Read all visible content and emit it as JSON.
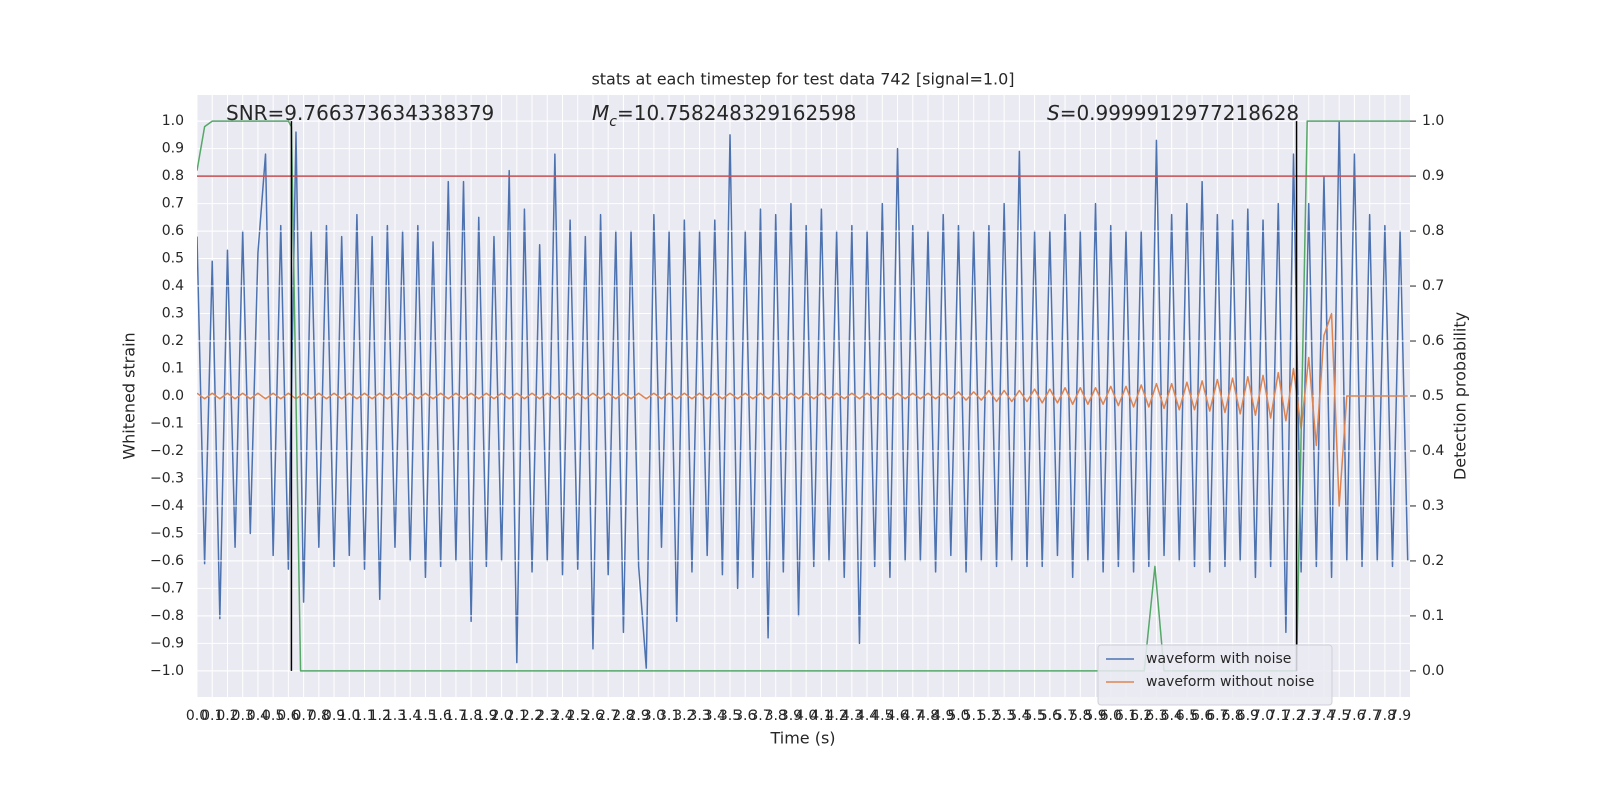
{
  "chart_data": {
    "type": "line",
    "title": "stats at each timestep for test data 742 [signal=1.0]",
    "xlabel": "Time (s)",
    "ylabel": "Whitened strain",
    "y2label": "Detection probability",
    "annotations": [
      {
        "text": "SNR=9.766373634338379"
      },
      {
        "symbol": "M",
        "subscript": "c",
        "text": "=10.758248329162598"
      },
      {
        "symbol": "S",
        "text": "=0.9999912977218628"
      }
    ],
    "xlim": [
      0,
      7.965
    ],
    "ylim": [
      -1.095,
      1.095
    ],
    "y2lim": [
      -0.0475,
      1.0475
    ],
    "grid": true,
    "background": "#eaeaf2",
    "legend": "lower right",
    "xticks": [
      {
        "value": 0,
        "label": "0.0"
      },
      0.1,
      0.2,
      0.3,
      0.4,
      0.5,
      0.6,
      0.7,
      0.8,
      0.9,
      {
        "value": 1,
        "label": "1.0"
      },
      1.1,
      1.2,
      1.3,
      1.4,
      1.5,
      1.6,
      1.7,
      1.8,
      1.9,
      {
        "value": 2,
        "label": "2.0"
      },
      2.1,
      2.2,
      2.3,
      2.4,
      2.5,
      2.6,
      2.7,
      2.8,
      2.9,
      {
        "value": 3,
        "label": "3.0"
      },
      3.1,
      3.2,
      3.3,
      3.4,
      3.5,
      3.6,
      3.7,
      3.8,
      3.9,
      {
        "value": 4,
        "label": "4.0"
      },
      4.1,
      4.2,
      4.3,
      4.4,
      4.5,
      4.6,
      4.7,
      4.8,
      4.9,
      {
        "value": 5,
        "label": "5.0"
      },
      5.1,
      5.2,
      5.3,
      5.4,
      5.5,
      5.6,
      5.7,
      5.8,
      5.9,
      {
        "value": 6,
        "label": "6.0"
      },
      6.1,
      6.2,
      6.3,
      6.4,
      6.5,
      6.6,
      6.7,
      6.8,
      6.9,
      {
        "value": 7,
        "label": "7.0"
      },
      7.1,
      7.2,
      7.3,
      7.4,
      7.5,
      7.6,
      7.7,
      7.8,
      7.9
    ],
    "yticks": [
      {
        "value": -1,
        "label": "−1.0"
      },
      {
        "value": -0.9,
        "label": "−0.9"
      },
      {
        "value": -0.8,
        "label": "−0.8"
      },
      {
        "value": -0.7,
        "label": "−0.7"
      },
      {
        "value": -0.6,
        "label": "−0.6"
      },
      {
        "value": -0.5,
        "label": "−0.5"
      },
      {
        "value": -0.4,
        "label": "−0.4"
      },
      {
        "value": -0.3,
        "label": "−0.3"
      },
      {
        "value": -0.2,
        "label": "−0.2"
      },
      {
        "value": -0.1,
        "label": "−0.1"
      },
      {
        "value": 0,
        "label": "0.0"
      },
      0.1,
      0.2,
      0.3,
      0.4,
      0.5,
      0.6,
      0.7,
      0.8,
      0.9,
      {
        "value": 1,
        "label": "1.0"
      }
    ],
    "y2ticks": [
      {
        "value": 0,
        "label": "0.0"
      },
      0.1,
      0.2,
      0.3,
      0.4,
      0.5,
      0.6,
      0.7,
      0.8,
      0.9,
      {
        "value": 1,
        "label": "1.0"
      }
    ],
    "x": [
      0,
      0.05,
      0.1,
      0.15,
      0.2,
      0.25,
      0.3,
      0.35,
      0.4,
      0.45,
      0.5,
      0.55,
      0.6,
      0.65,
      0.7,
      0.75,
      0.8,
      0.85,
      0.9,
      0.95,
      1,
      1.05,
      1.1,
      1.15,
      1.2,
      1.25,
      1.3,
      1.35,
      1.4,
      1.45,
      1.5,
      1.55,
      1.6,
      1.65,
      1.7,
      1.75,
      1.8,
      1.85,
      1.9,
      1.95,
      2,
      2.05,
      2.1,
      2.15,
      2.2,
      2.25,
      2.3,
      2.35,
      2.4,
      2.45,
      2.5,
      2.55,
      2.6,
      2.65,
      2.7,
      2.75,
      2.8,
      2.85,
      2.9,
      2.95,
      3,
      3.05,
      3.1,
      3.15,
      3.2,
      3.25,
      3.3,
      3.35,
      3.4,
      3.45,
      3.5,
      3.55,
      3.6,
      3.65,
      3.7,
      3.75,
      3.8,
      3.85,
      3.9,
      3.95,
      4,
      4.05,
      4.1,
      4.15,
      4.2,
      4.25,
      4.3,
      4.35,
      4.4,
      4.45,
      4.5,
      4.55,
      4.6,
      4.65,
      4.7,
      4.75,
      4.8,
      4.85,
      4.9,
      4.95,
      5,
      5.05,
      5.1,
      5.15,
      5.2,
      5.25,
      5.3,
      5.35,
      5.4,
      5.45,
      5.5,
      5.55,
      5.6,
      5.65,
      5.7,
      5.75,
      5.8,
      5.85,
      5.9,
      5.95,
      6,
      6.05,
      6.1,
      6.15,
      6.2,
      6.25,
      6.3,
      6.35,
      6.4,
      6.45,
      6.5,
      6.55,
      6.6,
      6.65,
      6.7,
      6.75,
      6.8,
      6.85,
      6.9,
      6.95,
      7,
      7.05,
      7.1,
      7.15,
      7.2,
      7.25,
      7.3,
      7.35,
      7.4,
      7.45,
      7.5,
      7.55,
      7.6,
      7.65,
      7.7,
      7.75,
      7.8,
      7.85,
      7.9,
      7.95
    ],
    "series": [
      {
        "name": "waveform with noise",
        "color": "#4c72b0",
        "values": [
          0.58,
          -0.61,
          0.49,
          -0.81,
          0.53,
          -0.55,
          0.6,
          -0.5,
          0.52,
          0.88,
          -0.58,
          0.62,
          -0.63,
          0.96,
          -0.75,
          0.6,
          -0.55,
          0.62,
          -0.62,
          0.58,
          -0.58,
          0.66,
          -0.63,
          0.58,
          -0.74,
          0.62,
          -0.55,
          0.6,
          -0.6,
          0.62,
          -0.66,
          0.56,
          -0.62,
          0.78,
          -0.6,
          0.78,
          -0.82,
          0.65,
          -0.62,
          0.58,
          -0.6,
          0.82,
          -0.97,
          0.68,
          -0.64,
          0.55,
          -0.6,
          0.88,
          -0.65,
          0.64,
          -0.63,
          0.58,
          -0.92,
          0.66,
          -0.65,
          0.6,
          -0.86,
          0.6,
          -0.62,
          -0.99,
          0.66,
          -0.55,
          0.6,
          -0.82,
          0.64,
          -0.64,
          0.6,
          -0.58,
          0.64,
          -0.65,
          0.95,
          -0.7,
          0.6,
          -0.66,
          0.68,
          -0.88,
          0.66,
          -0.64,
          0.7,
          -0.8,
          0.62,
          -0.62,
          0.68,
          -0.6,
          0.6,
          -0.66,
          0.62,
          -0.9,
          0.6,
          -0.62,
          0.7,
          -0.66,
          0.9,
          -0.6,
          0.62,
          -0.6,
          0.6,
          -0.64,
          0.66,
          -0.58,
          0.62,
          -0.64,
          0.6,
          -0.6,
          0.62,
          -0.62,
          0.7,
          -0.6,
          0.89,
          -0.62,
          0.6,
          -0.62,
          0.6,
          -0.58,
          0.66,
          -0.66,
          0.6,
          -0.6,
          0.7,
          -0.64,
          0.62,
          -0.62,
          0.6,
          -0.64,
          0.6,
          -0.62,
          0.93,
          -0.58,
          0.66,
          -0.6,
          0.7,
          -0.62,
          0.78,
          -0.64,
          0.66,
          -0.62,
          0.64,
          -0.6,
          0.68,
          -0.66,
          0.64,
          -0.62,
          0.7,
          -0.86,
          0.88,
          -0.64,
          0.7,
          -0.62,
          0.8,
          -0.66,
          1.0,
          -0.6,
          0.88,
          -0.62,
          0.66,
          -0.6,
          0.62,
          -0.62,
          0.6,
          -0.6
        ]
      },
      {
        "name": "waveform without noise",
        "color": "#dd8452",
        "values": [
          0.01,
          -0.01,
          0.01,
          -0.01,
          0.01,
          -0.01,
          0.01,
          -0.01,
          0.01,
          -0.01,
          0.01,
          -0.01,
          0.01,
          -0.01,
          0.01,
          -0.01,
          0.01,
          -0.01,
          0.01,
          -0.01,
          0.01,
          -0.01,
          0.01,
          -0.01,
          0.01,
          -0.01,
          0.01,
          -0.01,
          0.01,
          -0.01,
          0.01,
          -0.01,
          0.01,
          -0.01,
          0.01,
          -0.01,
          0.01,
          -0.01,
          0.01,
          -0.01,
          0.01,
          -0.01,
          0.01,
          -0.01,
          0.01,
          -0.01,
          0.01,
          -0.01,
          0.01,
          -0.01,
          0.01,
          -0.01,
          0.01,
          -0.01,
          0.01,
          -0.01,
          0.01,
          -0.01,
          0.01,
          -0.01,
          0.01,
          -0.01,
          0.01,
          -0.01,
          0.01,
          -0.01,
          0.01,
          -0.01,
          0.01,
          -0.01,
          0.01,
          -0.01,
          0.01,
          -0.01,
          0.01,
          -0.01,
          0.01,
          -0.01,
          0.01,
          -0.01,
          0.01,
          -0.01,
          0.01,
          -0.01,
          0.01,
          -0.01,
          0.01,
          -0.01,
          0.01,
          -0.01,
          0.01,
          -0.01,
          0.01,
          -0.01,
          0.01,
          -0.01,
          0.01,
          -0.01,
          0.01,
          -0.01,
          0.015,
          -0.015,
          0.015,
          -0.015,
          0.02,
          -0.02,
          0.02,
          -0.02,
          0.02,
          -0.02,
          0.025,
          -0.025,
          0.025,
          -0.025,
          0.03,
          -0.03,
          0.03,
          -0.03,
          0.03,
          -0.03,
          0.035,
          -0.035,
          0.035,
          -0.04,
          0.04,
          -0.04,
          0.045,
          -0.045,
          0.045,
          -0.05,
          0.05,
          -0.05,
          0.055,
          -0.055,
          0.06,
          -0.06,
          0.065,
          -0.065,
          0.07,
          -0.07,
          0.075,
          -0.08,
          0.085,
          -0.09,
          0.1,
          -0.12,
          0.14,
          -0.18,
          0.22,
          0.3,
          -0.4,
          0,
          0,
          0,
          0,
          0,
          0,
          0,
          0,
          0
        ]
      },
      {
        "color": "#55a868",
        "axis": "y2",
        "x": [
          0,
          0.05,
          0.1,
          0.6,
          0.62,
          0.68,
          6.22,
          6.29,
          6.35,
          7.22,
          7.29,
          7.965
        ],
        "values": [
          0.91,
          0.99,
          1.0,
          1.0,
          0.99,
          0.0,
          0.0,
          0.19,
          0.0,
          0.0,
          1.0,
          1.0
        ]
      }
    ],
    "hlines": [
      {
        "value": 0.9,
        "axis": "y2",
        "color": "#c44e52"
      }
    ],
    "vlines": [
      {
        "value": 0.62,
        "color": "#000000"
      },
      {
        "value": 7.22,
        "color": "#000000"
      }
    ]
  }
}
